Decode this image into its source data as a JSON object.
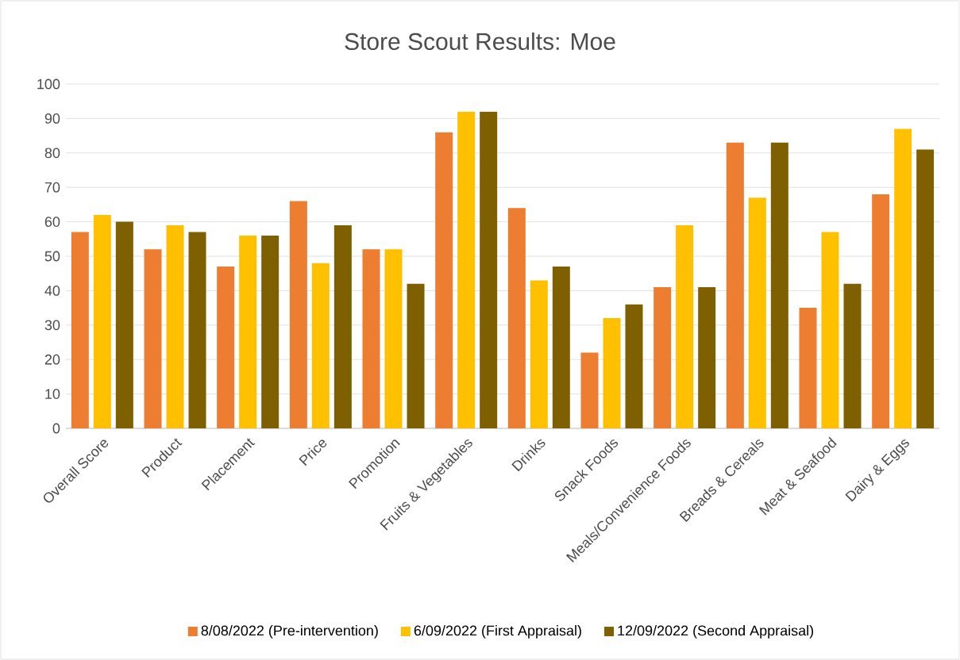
{
  "chart_data": {
    "type": "bar",
    "title": "Store Scout Results: Moe",
    "categories": [
      "Overall Score",
      "Product",
      "Placement",
      "Price",
      "Promotion",
      "Fruits & Vegetables",
      "Drinks",
      "Snack Foods",
      "Meals/Convenience Foods",
      "Breads & Cereals",
      "Meat & Seafood",
      "Dairy & Eggs"
    ],
    "series": [
      {
        "name": "8/08/2022 (Pre-intervention)",
        "color": "#ed7d31",
        "values": [
          57,
          52,
          47,
          66,
          52,
          86,
          64,
          22,
          41,
          83,
          35,
          68
        ]
      },
      {
        "name": "6/09/2022 (First Appraisal)",
        "color": "#ffc000",
        "values": [
          62,
          59,
          56,
          48,
          52,
          92,
          43,
          32,
          59,
          67,
          57,
          87
        ]
      },
      {
        "name": "12/09/2022 (Second Appraisal)",
        "color": "#7f6000",
        "values": [
          60,
          57,
          56,
          59,
          42,
          92,
          47,
          36,
          41,
          83,
          42,
          81
        ]
      }
    ],
    "ylim": [
      0,
      100
    ],
    "yticks": [
      0,
      10,
      20,
      30,
      40,
      50,
      60,
      70,
      80,
      90,
      100
    ],
    "grid": "y",
    "legend": "bottom"
  }
}
